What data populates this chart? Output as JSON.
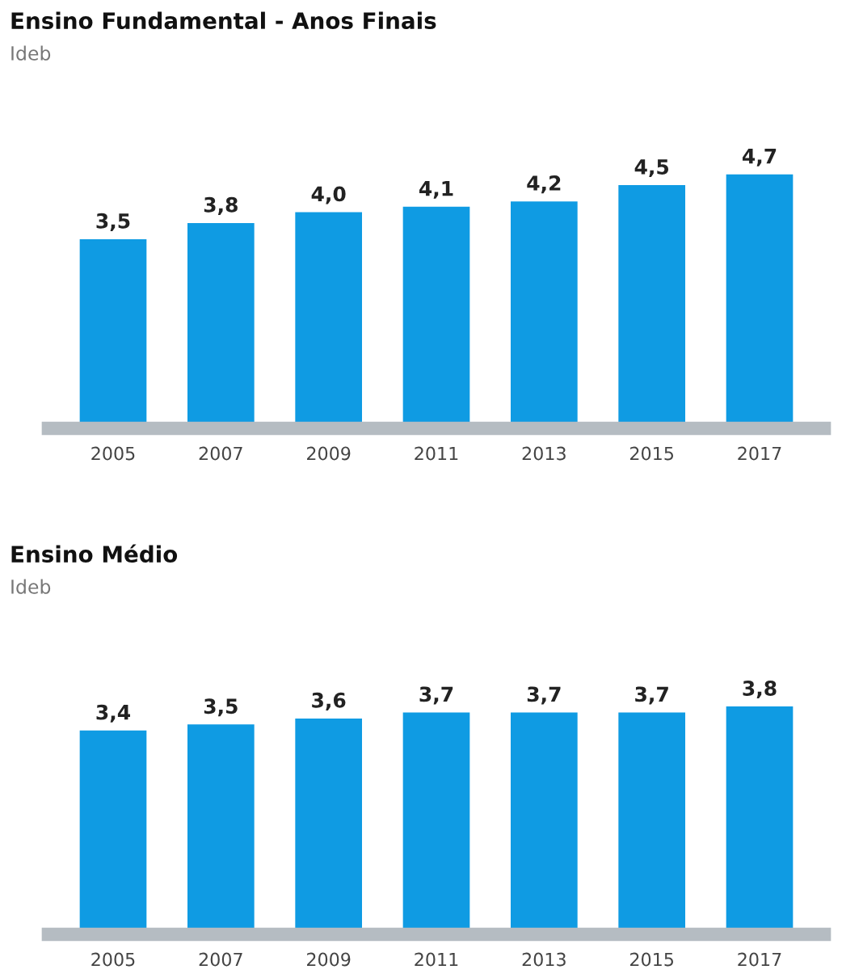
{
  "chart_data": [
    {
      "type": "bar",
      "title": "Ensino Fundamental - Anos Finais",
      "subtitle": "Ideb",
      "categories": [
        "2005",
        "2007",
        "2009",
        "2011",
        "2013",
        "2015",
        "2017"
      ],
      "values": [
        3.5,
        3.8,
        4.0,
        4.1,
        4.2,
        4.5,
        4.7
      ],
      "value_labels": [
        "3,5",
        "3,8",
        "4,0",
        "4,1",
        "4,2",
        "4,5",
        "4,7"
      ],
      "color": "#0f9be3",
      "tick_labels": "x",
      "grid": false,
      "legend": false
    },
    {
      "type": "bar",
      "title": "Ensino Médio",
      "subtitle": "Ideb",
      "categories": [
        "2005",
        "2007",
        "2009",
        "2011",
        "2013",
        "2015",
        "2017"
      ],
      "values": [
        3.4,
        3.5,
        3.6,
        3.7,
        3.7,
        3.7,
        3.8
      ],
      "value_labels": [
        "3,4",
        "3,5",
        "3,6",
        "3,7",
        "3,7",
        "3,7",
        "3,8"
      ],
      "color": "#0f9be3",
      "tick_labels": "x",
      "grid": false,
      "legend": false
    }
  ]
}
